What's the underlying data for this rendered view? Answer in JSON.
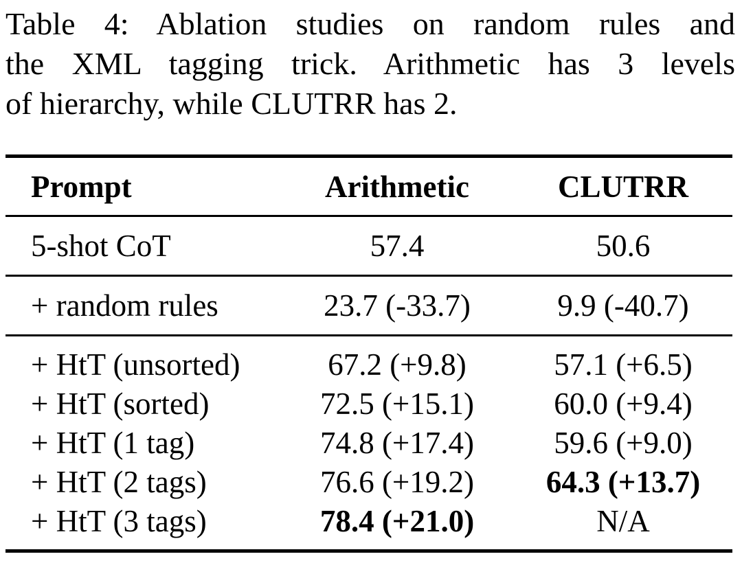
{
  "caption": {
    "lines": [
      "Table 4: Ablation studies on random rules and",
      "the XML tagging trick. Arithmetic has 3 levels",
      "of hierarchy, while CLUTRR has 2."
    ]
  },
  "table": {
    "columns": [
      "Prompt",
      "Arithmetic",
      "CLUTRR"
    ],
    "sections": [
      {
        "rows": [
          {
            "prompt": "5-shot CoT",
            "arithmetic": {
              "text": "57.4",
              "bold": false
            },
            "clutrr": {
              "text": "50.6",
              "bold": false
            }
          }
        ]
      },
      {
        "rows": [
          {
            "prompt": "+ random rules",
            "arithmetic": {
              "text": "23.7 (-33.7)",
              "bold": false
            },
            "clutrr": {
              "text": "9.9 (-40.7)",
              "bold": false
            }
          }
        ]
      },
      {
        "rows": [
          {
            "prompt": "+ HtT (unsorted)",
            "arithmetic": {
              "text": "67.2 (+9.8)",
              "bold": false
            },
            "clutrr": {
              "text": "57.1 (+6.5)",
              "bold": false
            }
          },
          {
            "prompt": "+ HtT (sorted)",
            "arithmetic": {
              "text": "72.5 (+15.1)",
              "bold": false
            },
            "clutrr": {
              "text": "60.0 (+9.4)",
              "bold": false
            }
          },
          {
            "prompt": "+ HtT (1 tag)",
            "arithmetic": {
              "text": "74.8 (+17.4)",
              "bold": false
            },
            "clutrr": {
              "text": "59.6 (+9.0)",
              "bold": false
            }
          },
          {
            "prompt": "+ HtT (2 tags)",
            "arithmetic": {
              "text": "76.6 (+19.2)",
              "bold": false
            },
            "clutrr": {
              "text": "64.3 (+13.7)",
              "bold": true
            }
          },
          {
            "prompt": "+ HtT (3 tags)",
            "arithmetic": {
              "text": "78.4 (+21.0)",
              "bold": true
            },
            "clutrr": {
              "text": "N/A",
              "bold": false
            }
          }
        ]
      }
    ]
  },
  "colors": {
    "background": "#ffffff",
    "text": "#000000",
    "rule": "#000000"
  }
}
